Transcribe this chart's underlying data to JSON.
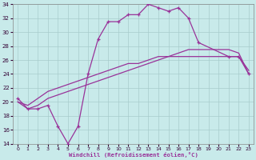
{
  "xlabel": "Windchill (Refroidissement éolien,°C)",
  "xlim_min": 0,
  "xlim_max": 23,
  "ylim_min": 14,
  "ylim_max": 34,
  "xticks": [
    0,
    1,
    2,
    3,
    4,
    5,
    6,
    7,
    8,
    9,
    10,
    11,
    12,
    13,
    14,
    15,
    16,
    17,
    18,
    19,
    20,
    21,
    22,
    23
  ],
  "yticks": [
    14,
    16,
    18,
    20,
    22,
    24,
    26,
    28,
    30,
    32,
    34
  ],
  "bg_color": "#c8eaea",
  "line_color": "#993399",
  "grid_color": "#a8cccc",
  "curve1_x": [
    0,
    1,
    2,
    3,
    4,
    5,
    6,
    7,
    8,
    9,
    10,
    11,
    12,
    13,
    14,
    15,
    16,
    17,
    18,
    21,
    22,
    23
  ],
  "curve1_y": [
    20.5,
    19.0,
    19.0,
    19.5,
    16.5,
    14.0,
    16.5,
    24.0,
    29.0,
    31.5,
    31.5,
    32.5,
    32.5,
    34.0,
    33.5,
    33.0,
    33.5,
    32.0,
    28.5,
    26.5,
    26.5,
    24.0
  ],
  "curve2_x": [
    0,
    1,
    2,
    3,
    4,
    5,
    6,
    7,
    8,
    9,
    10,
    11,
    12,
    13,
    14,
    15,
    16,
    17,
    18,
    19,
    20,
    21,
    22,
    23
  ],
  "curve2_y": [
    20.0,
    19.5,
    20.5,
    21.5,
    22.0,
    22.5,
    23.0,
    23.5,
    24.0,
    24.5,
    25.0,
    25.5,
    25.5,
    26.0,
    26.5,
    26.5,
    26.5,
    26.5,
    26.5,
    26.5,
    26.5,
    26.5,
    26.5,
    24.5
  ],
  "curve3_x": [
    0,
    1,
    2,
    3,
    4,
    5,
    6,
    7,
    8,
    9,
    10,
    11,
    12,
    13,
    14,
    15,
    16,
    17,
    18,
    19,
    20,
    21,
    22,
    23
  ],
  "curve3_y": [
    20.0,
    19.0,
    19.5,
    20.5,
    21.0,
    21.5,
    22.0,
    22.5,
    23.0,
    23.5,
    24.0,
    24.5,
    25.0,
    25.5,
    26.0,
    26.5,
    27.0,
    27.5,
    27.5,
    27.5,
    27.5,
    27.5,
    27.0,
    24.0
  ]
}
